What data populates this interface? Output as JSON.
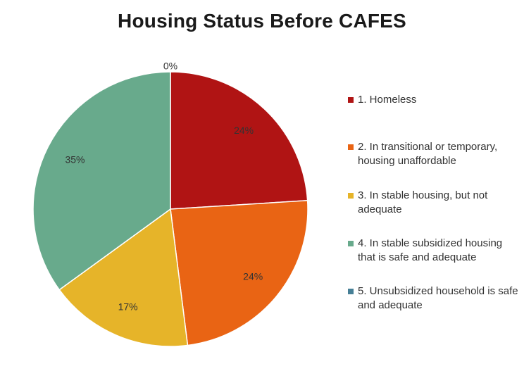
{
  "chart_data": {
    "type": "pie",
    "title": "Housing Status Before CAFES",
    "categories": [
      "1. Homeless",
      "2. In transitional or temporary, housing unaffordable",
      "3. In stable housing, but not adequate",
      "4. In stable subsidized housing that is safe and adequate",
      "5. Unsubsidized household is safe and adequate"
    ],
    "values": [
      24,
      24,
      17,
      35,
      0
    ],
    "labels": [
      "24%",
      "24%",
      "17%",
      "35%",
      "0%"
    ],
    "colors": [
      "#B01414",
      "#E96414",
      "#E6B429",
      "#68AA8C",
      "#467F96"
    ],
    "legend": "right"
  }
}
